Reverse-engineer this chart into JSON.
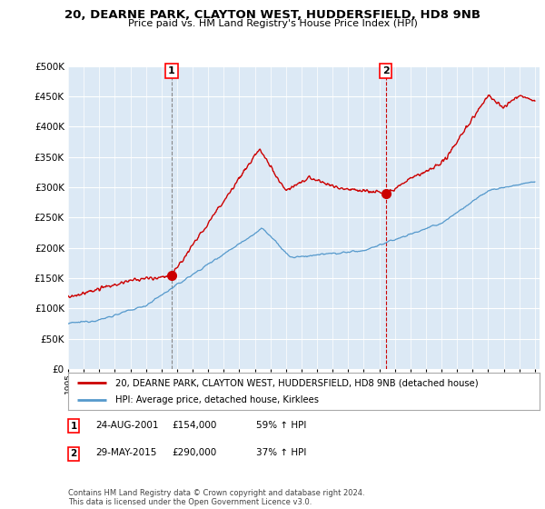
{
  "title": "20, DEARNE PARK, CLAYTON WEST, HUDDERSFIELD, HD8 9NB",
  "subtitle": "Price paid vs. HM Land Registry's House Price Index (HPI)",
  "ylim": [
    0,
    500000
  ],
  "yticks": [
    0,
    50000,
    100000,
    150000,
    200000,
    250000,
    300000,
    350000,
    400000,
    450000,
    500000
  ],
  "background_color": "#ffffff",
  "plot_bg_color": "#dce9f5",
  "legend_entry1": "20, DEARNE PARK, CLAYTON WEST, HUDDERSFIELD, HD8 9NB (detached house)",
  "legend_entry2": "HPI: Average price, detached house, Kirklees",
  "sale1_date": "24-AUG-2001",
  "sale1_price": "£154,000",
  "sale1_hpi": "59% ↑ HPI",
  "sale2_date": "29-MAY-2015",
  "sale2_price": "£290,000",
  "sale2_hpi": "37% ↑ HPI",
  "footnote": "Contains HM Land Registry data © Crown copyright and database right 2024.\nThis data is licensed under the Open Government Licence v3.0.",
  "line1_color": "#cc0000",
  "line2_color": "#5599cc",
  "sale1_x": 2001.65,
  "sale1_y": 154000,
  "sale2_x": 2015.41,
  "sale2_y": 290000,
  "xlim_left": 1995,
  "xlim_right": 2025.3
}
